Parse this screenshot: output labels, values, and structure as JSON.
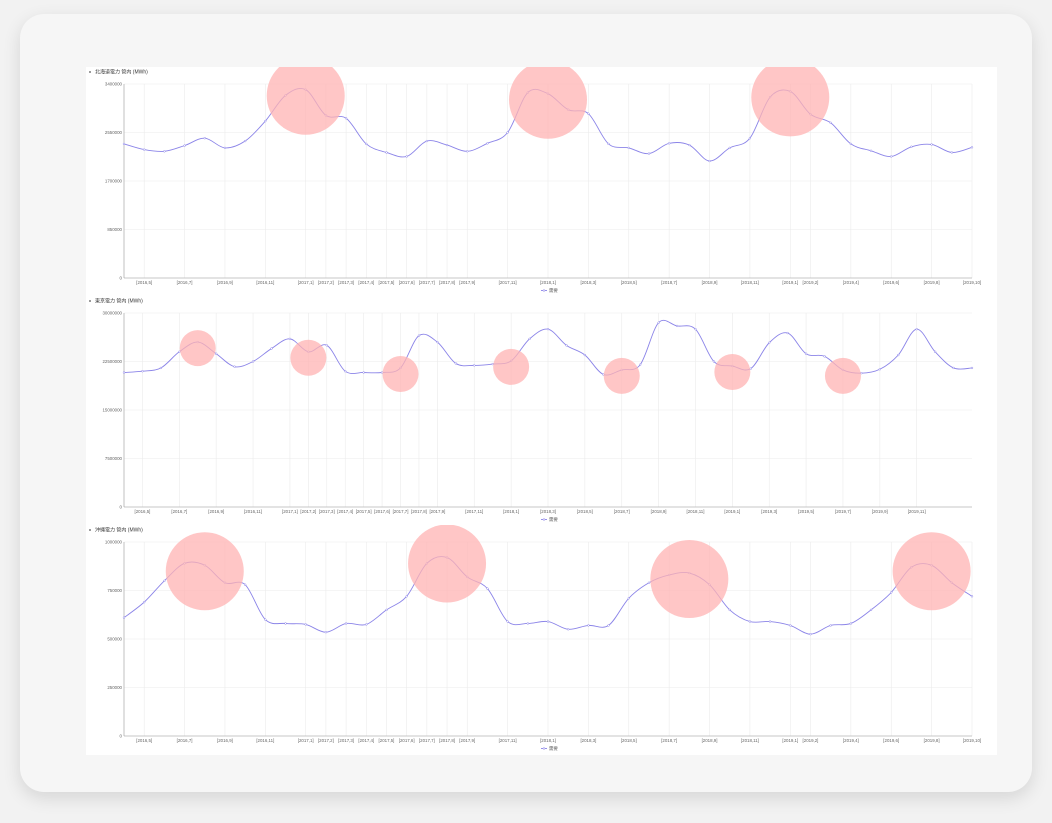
{
  "legend_label": "需要",
  "colors": {
    "line": "#8b84e8",
    "highlight": "#ffb3b3",
    "grid": "#ebebeb"
  },
  "chart_data": [
    {
      "type": "line",
      "title": "北海道電力 管内 (MWh)",
      "ylim": [
        0,
        3400000
      ],
      "yticks": [
        0,
        850000,
        1700000,
        2550000,
        3400000
      ],
      "ytick_labels": [
        "0",
        "850000",
        "1700000",
        "2550000",
        "3400000"
      ],
      "tick_labels": [
        "[2016,5]",
        "[2016,7]",
        "[2016,9]",
        "[2016,11]",
        "[2017,1]",
        "[2017,2]",
        "[2017,3]",
        "[2017,4]",
        "[2017,5]",
        "[2017,6]",
        "[2017,7]",
        "[2017,8]",
        "[2017,9]",
        "[2017,11]",
        "[2018,1]",
        "[2018,3]",
        "[2018,5]",
        "[2018,7]",
        "[2018,9]",
        "[2018,11]",
        "[2019,1]",
        "[2019,2]",
        "[2019,4]",
        "[2019,6]",
        "[2019,8]",
        "[2019,10]"
      ],
      "tick_index": [
        1,
        3,
        5,
        7,
        9,
        10,
        11,
        12,
        13,
        14,
        15,
        16,
        17,
        19,
        21,
        23,
        25,
        27,
        29,
        31,
        33,
        34,
        36,
        38,
        40,
        42
      ],
      "series": [
        {
          "name": "需要",
          "values": [
            2350000,
            2250000,
            2220000,
            2320000,
            2450000,
            2280000,
            2400000,
            2750000,
            3200000,
            3300000,
            2850000,
            2800000,
            2350000,
            2200000,
            2130000,
            2400000,
            2330000,
            2220000,
            2360000,
            2550000,
            3250000,
            3230000,
            2950000,
            2880000,
            2350000,
            2280000,
            2180000,
            2360000,
            2330000,
            2050000,
            2280000,
            2450000,
            3170000,
            3270000,
            2870000,
            2720000,
            2350000,
            2230000,
            2130000,
            2300000,
            2340000,
            2200000,
            2290000
          ]
        }
      ],
      "highlight_index": [
        9,
        21,
        33
      ]
    },
    {
      "type": "line",
      "title": "東京電力 管内 (MWh)",
      "ylim": [
        0,
        30000000
      ],
      "yticks": [
        0,
        7500000,
        15000000,
        22500000,
        30000000
      ],
      "ytick_labels": [
        "0",
        "7500000",
        "15000000",
        "22500000",
        "30000000"
      ],
      "tick_labels": [
        "[2016,5]",
        "[2016,7]",
        "[2016,9]",
        "[2016,11]",
        "[2017,1]",
        "[2017,2]",
        "[2017,3]",
        "[2017,4]",
        "[2017,5]",
        "[2017,6]",
        "[2017,7]",
        "[2017,8]",
        "[2017,9]",
        "[2017,11]",
        "[2018,1]",
        "[2018,3]",
        "[2018,5]",
        "[2018,7]",
        "[2018,9]",
        "[2018,11]",
        "[2019,1]",
        "[2019,3]",
        "[2019,5]",
        "[2019,7]",
        "[2019,9]",
        "[2019,11]"
      ],
      "tick_index": [
        1,
        3,
        5,
        7,
        9,
        10,
        11,
        12,
        13,
        14,
        15,
        16,
        17,
        19,
        21,
        23,
        25,
        27,
        29,
        31,
        33,
        35,
        37,
        39,
        41,
        43
      ],
      "series": [
        {
          "name": "需要",
          "values": [
            20800000,
            21000000,
            21500000,
            24000000,
            25500000,
            23700000,
            21700000,
            22500000,
            24500000,
            26000000,
            24000000,
            25000000,
            21000000,
            20800000,
            20800000,
            21500000,
            26500000,
            25500000,
            22200000,
            21900000,
            22100000,
            22600000,
            26000000,
            27500000,
            25000000,
            23500000,
            20500000,
            21200000,
            22000000,
            28500000,
            28000000,
            27500000,
            22500000,
            21800000,
            21400000,
            25400000,
            26900000,
            23700000,
            23300000,
            21200000,
            20700000,
            21300000,
            23500000,
            27500000,
            24000000,
            21500000,
            21500000
          ]
        }
      ],
      "highlight_index": [
        4,
        10,
        15,
        21,
        27,
        33,
        39
      ]
    },
    {
      "type": "line",
      "title": "沖縄電力 管内 (MWh)",
      "ylim": [
        0,
        1000000
      ],
      "yticks": [
        0,
        250000,
        500000,
        750000,
        1000000
      ],
      "ytick_labels": [
        "0",
        "250000",
        "500000",
        "750000",
        "1000000"
      ],
      "tick_labels": [
        "[2016,5]",
        "[2016,7]",
        "[2016,9]",
        "[2016,11]",
        "[2017,1]",
        "[2017,2]",
        "[2017,3]",
        "[2017,4]",
        "[2017,5]",
        "[2017,6]",
        "[2017,7]",
        "[2017,8]",
        "[2017,9]",
        "[2017,11]",
        "[2018,1]",
        "[2018,3]",
        "[2018,5]",
        "[2018,7]",
        "[2018,9]",
        "[2018,11]",
        "[2019,1]",
        "[2019,2]",
        "[2019,4]",
        "[2019,6]",
        "[2019,8]",
        "[2019,10]"
      ],
      "tick_index": [
        1,
        3,
        5,
        7,
        9,
        10,
        11,
        12,
        13,
        14,
        15,
        16,
        17,
        19,
        21,
        23,
        25,
        27,
        29,
        31,
        33,
        34,
        36,
        38,
        40,
        42
      ],
      "series": [
        {
          "name": "需要",
          "values": [
            610000,
            690000,
            800000,
            890000,
            880000,
            790000,
            780000,
            600000,
            580000,
            575000,
            535000,
            580000,
            575000,
            650000,
            720000,
            890000,
            920000,
            820000,
            760000,
            590000,
            580000,
            590000,
            550000,
            570000,
            570000,
            710000,
            790000,
            830000,
            840000,
            780000,
            650000,
            590000,
            590000,
            570000,
            525000,
            570000,
            580000,
            650000,
            740000,
            870000,
            880000,
            790000,
            720000
          ]
        }
      ],
      "highlight_index": [
        4,
        16,
        28,
        40
      ]
    }
  ]
}
